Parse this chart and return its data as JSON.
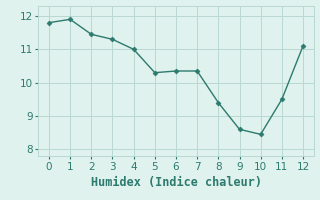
{
  "x": [
    0,
    1,
    2,
    3,
    4,
    5,
    6,
    7,
    8,
    9,
    10,
    11,
    12
  ],
  "y": [
    11.8,
    11.9,
    11.45,
    11.3,
    11.0,
    10.3,
    10.35,
    10.35,
    9.4,
    8.6,
    8.45,
    9.5,
    11.1
  ],
  "line_color": "#2d7a6e",
  "marker": "D",
  "marker_size": 2.5,
  "linewidth": 1.0,
  "xlabel": "Humidex (Indice chaleur)",
  "ylim": [
    7.8,
    12.3
  ],
  "xlim": [
    -0.5,
    12.5
  ],
  "yticks": [
    8,
    9,
    10,
    11,
    12
  ],
  "xticks": [
    0,
    1,
    2,
    3,
    4,
    5,
    6,
    7,
    8,
    9,
    10,
    11,
    12
  ],
  "background_color": "#dff2ee",
  "grid_color": "#b8d8d2",
  "tick_label_fontsize": 7.5,
  "xlabel_fontsize": 8.5
}
